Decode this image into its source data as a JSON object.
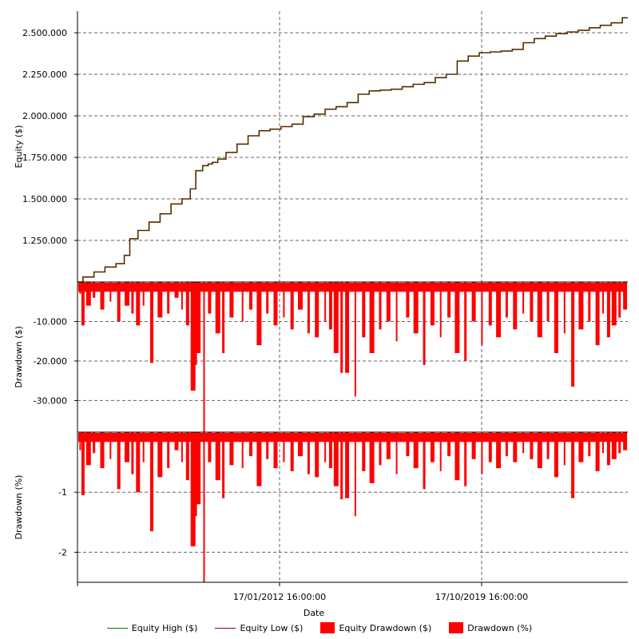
{
  "chart_data": {
    "type": "line",
    "xlabel": "Date",
    "x_tick_labels": [
      "17/01/2012 16:00:00",
      "17/10/2019 16:00:00"
    ],
    "colors": {
      "equity_high": "#008000",
      "equity_low": "#8b0000",
      "drawdown_fill": "#ff0000",
      "axis": "#000000",
      "grid": "#666666"
    },
    "legend": {
      "position": "bottom",
      "items": [
        {
          "label": "Equity High ($)",
          "kind": "line",
          "color": "#008000"
        },
        {
          "label": "Equity Low ($)",
          "kind": "line",
          "color": "#8b0000"
        },
        {
          "label": "Equity Drawdown ($)",
          "kind": "box",
          "color": "#ff0000"
        },
        {
          "label": "Drawdown (%)",
          "kind": "box",
          "color": "#ff0000"
        }
      ]
    },
    "panels": [
      {
        "id": "equity",
        "ylabel": "Equity ($)",
        "ylim": [
          1000000,
          2630000
        ],
        "yticks": [
          1250000,
          1500000,
          1750000,
          2000000,
          2250000,
          2500000
        ],
        "ytick_labels": [
          "1.250.000",
          "1.500.000",
          "1.750.000",
          "2.000.000",
          "2.250.000",
          "2.500.000"
        ],
        "series": [
          {
            "name": "Equity Low ($)",
            "x": [
              0,
              0.02,
              0.04,
              0.06,
              0.08,
              0.09,
              0.1,
              0.12,
              0.14,
              0.16,
              0.18,
              0.2,
              0.21,
              0.22,
              0.235,
              0.24,
              0.25,
              0.26,
              0.28,
              0.3,
              0.32,
              0.34,
              0.36,
              0.38,
              0.4,
              0.42,
              0.44,
              0.46,
              0.48,
              0.5,
              0.52,
              0.54,
              0.56,
              0.58,
              0.6,
              0.62,
              0.64,
              0.66,
              0.68,
              0.7,
              0.72,
              0.74,
              0.76,
              0.78,
              0.8,
              0.82,
              0.84,
              0.86,
              0.88,
              0.9,
              0.92,
              0.94,
              0.96,
              0.98,
              1.0
            ],
            "y": [
              1000000,
              1030000,
              1060000,
              1090000,
              1110000,
              1160000,
              1260000,
              1310000,
              1360000,
              1410000,
              1470000,
              1500000,
              1560000,
              1670000,
              1700000,
              1710000,
              1720000,
              1740000,
              1780000,
              1830000,
              1880000,
              1910000,
              1920000,
              1935000,
              1950000,
              1995000,
              2010000,
              2040000,
              2055000,
              2080000,
              2130000,
              2150000,
              2155000,
              2160000,
              2175000,
              2190000,
              2200000,
              2230000,
              2250000,
              2330000,
              2360000,
              2380000,
              2385000,
              2390000,
              2400000,
              2440000,
              2465000,
              2480000,
              2495000,
              2505000,
              2515000,
              2530000,
              2545000,
              2560000,
              2590000
            ]
          }
        ]
      },
      {
        "id": "drawdown_usd",
        "ylabel": "Drawdown ($)",
        "ylim": [
          -38000,
          0
        ],
        "yticks": [
          -10000,
          -20000,
          -30000
        ],
        "ytick_labels": [
          "-10.000",
          "-20.000",
          "-30.000"
        ],
        "spikes_x": [
          0.005,
          0.01,
          0.02,
          0.03,
          0.045,
          0.06,
          0.075,
          0.09,
          0.1,
          0.11,
          0.12,
          0.135,
          0.15,
          0.165,
          0.18,
          0.19,
          0.2,
          0.21,
          0.215,
          0.22,
          0.23,
          0.24,
          0.255,
          0.265,
          0.28,
          0.3,
          0.315,
          0.33,
          0.345,
          0.36,
          0.375,
          0.39,
          0.405,
          0.42,
          0.435,
          0.45,
          0.46,
          0.47,
          0.48,
          0.49,
          0.505,
          0.52,
          0.535,
          0.55,
          0.565,
          0.58,
          0.6,
          0.615,
          0.63,
          0.645,
          0.66,
          0.675,
          0.69,
          0.705,
          0.72,
          0.735,
          0.75,
          0.765,
          0.78,
          0.795,
          0.81,
          0.825,
          0.84,
          0.855,
          0.87,
          0.885,
          0.9,
          0.915,
          0.93,
          0.945,
          0.955,
          0.965,
          0.975,
          0.985,
          0.995
        ],
        "spikes_y": [
          -3000,
          -11000,
          -6000,
          -4000,
          -7000,
          -5000,
          -10000,
          -6000,
          -8000,
          -11000,
          -6000,
          -20500,
          -9000,
          -8000,
          -4000,
          -7000,
          -11000,
          -27500,
          -21000,
          -18000,
          -38000,
          -8000,
          -13000,
          -18000,
          -9000,
          -10000,
          -7000,
          -16000,
          -8000,
          -11000,
          -9000,
          -12000,
          -7000,
          -13000,
          -14000,
          -10000,
          -12000,
          -18000,
          -23000,
          -23000,
          -29000,
          -14000,
          -18000,
          -12000,
          -10000,
          -15000,
          -9000,
          -13000,
          -21000,
          -11000,
          -14000,
          -9000,
          -18000,
          -20000,
          -10000,
          -16000,
          -11000,
          -14000,
          -9000,
          -12000,
          -8000,
          -10000,
          -14000,
          -10000,
          -18000,
          -13000,
          -26500,
          -12000,
          -10000,
          -16000,
          -8000,
          -14000,
          -11000,
          -9000,
          -7000
        ]
      },
      {
        "id": "drawdown_pct",
        "ylabel": "Drawdown (%)",
        "ylim": [
          -2.5,
          0
        ],
        "yticks": [
          -1,
          -2
        ],
        "ytick_labels": [
          "-1",
          "-2"
        ],
        "spikes_x": [
          0.005,
          0.01,
          0.02,
          0.03,
          0.045,
          0.06,
          0.075,
          0.09,
          0.1,
          0.11,
          0.12,
          0.135,
          0.15,
          0.165,
          0.18,
          0.19,
          0.2,
          0.21,
          0.215,
          0.22,
          0.23,
          0.24,
          0.255,
          0.265,
          0.28,
          0.3,
          0.315,
          0.33,
          0.345,
          0.36,
          0.375,
          0.39,
          0.405,
          0.42,
          0.435,
          0.45,
          0.46,
          0.47,
          0.48,
          0.49,
          0.505,
          0.52,
          0.535,
          0.55,
          0.565,
          0.58,
          0.6,
          0.615,
          0.63,
          0.645,
          0.66,
          0.675,
          0.69,
          0.705,
          0.72,
          0.735,
          0.75,
          0.765,
          0.78,
          0.795,
          0.81,
          0.825,
          0.84,
          0.855,
          0.87,
          0.885,
          0.9,
          0.915,
          0.93,
          0.945,
          0.955,
          0.965,
          0.975,
          0.985,
          0.995
        ],
        "spikes_y": [
          -0.3,
          -1.05,
          -0.55,
          -0.35,
          -0.6,
          -0.45,
          -0.95,
          -0.5,
          -0.7,
          -1.0,
          -0.5,
          -1.65,
          -0.75,
          -0.6,
          -0.3,
          -0.5,
          -0.8,
          -1.9,
          -1.4,
          -1.2,
          -2.5,
          -0.5,
          -0.8,
          -1.1,
          -0.55,
          -0.6,
          -0.4,
          -0.9,
          -0.45,
          -0.6,
          -0.5,
          -0.65,
          -0.4,
          -0.7,
          -0.75,
          -0.5,
          -0.6,
          -0.9,
          -1.12,
          -1.1,
          -1.4,
          -0.65,
          -0.85,
          -0.55,
          -0.45,
          -0.7,
          -0.4,
          -0.6,
          -0.95,
          -0.5,
          -0.65,
          -0.4,
          -0.8,
          -0.9,
          -0.45,
          -0.7,
          -0.5,
          -0.6,
          -0.4,
          -0.5,
          -0.35,
          -0.45,
          -0.6,
          -0.45,
          -0.75,
          -0.55,
          -1.1,
          -0.5,
          -0.4,
          -0.65,
          -0.35,
          -0.55,
          -0.45,
          -0.35,
          -0.3
        ]
      }
    ]
  }
}
